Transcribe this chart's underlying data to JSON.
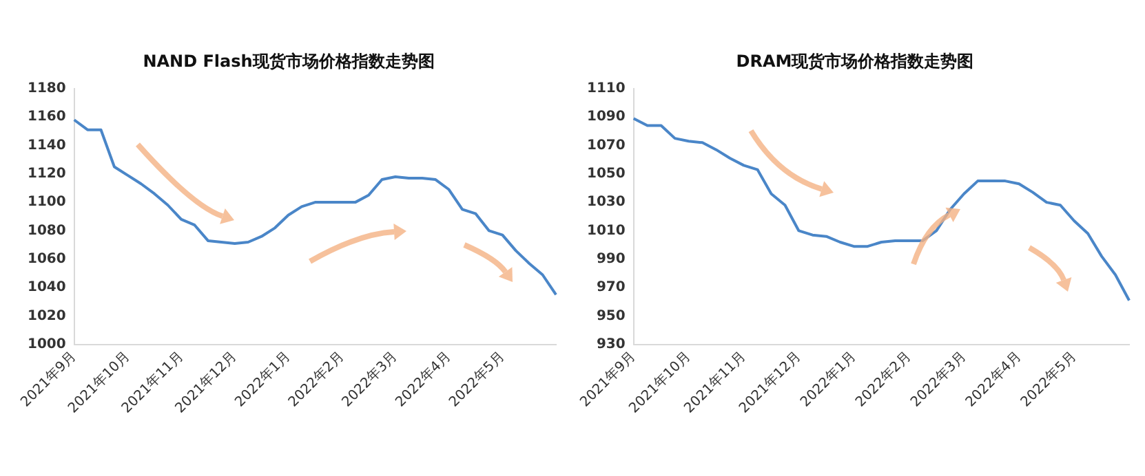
{
  "chart_data": [
    {
      "type": "line",
      "title": "NAND Flash现货市场价格指数走势图",
      "categories": [
        "2021年9月",
        null,
        null,
        null,
        "2021年10月",
        null,
        null,
        null,
        "2021年11月",
        null,
        null,
        null,
        "2021年12月",
        null,
        null,
        null,
        "2022年1月",
        null,
        null,
        null,
        "2022年2月",
        null,
        null,
        null,
        "2022年3月",
        null,
        null,
        null,
        "2022年4月",
        null,
        null,
        null,
        "2022年5月",
        null,
        null,
        null,
        null
      ],
      "series": [
        {
          "color": "#4a86c8",
          "values": [
            1158,
            1151,
            1151,
            1125,
            1119,
            1113,
            1106,
            1098,
            1088,
            1084,
            1073,
            1072,
            1071,
            1072,
            1076,
            1082,
            1091,
            1097,
            1100,
            1100,
            1100,
            1100,
            1105,
            1116,
            1118,
            1117,
            1117,
            1116,
            1109,
            1095,
            1092,
            1080,
            1077,
            1066,
            1057,
            1049,
            1035
          ]
        }
      ],
      "ylim": [
        1000,
        1180
      ],
      "yticks": [
        1000,
        1020,
        1040,
        1060,
        1080,
        1100,
        1120,
        1140,
        1160,
        1180
      ],
      "grid": false,
      "legend": false,
      "marker": "none"
    },
    {
      "type": "line",
      "title": "DRAM现货市场价格指数走势图",
      "categories": [
        "2021年9月",
        null,
        null,
        null,
        "2021年10月",
        null,
        null,
        null,
        "2021年11月",
        null,
        null,
        null,
        "2021年12月",
        null,
        null,
        null,
        "2022年1月",
        null,
        null,
        null,
        "2022年2月",
        null,
        null,
        null,
        "2022年3月",
        null,
        null,
        null,
        "2022年4月",
        null,
        null,
        null,
        "2022年5月",
        null,
        null,
        null,
        null
      ],
      "series": [
        {
          "color": "#4a86c8",
          "values": [
            1089,
            1084,
            1084,
            1075,
            1073,
            1072,
            1067,
            1061,
            1056,
            1053,
            1036,
            1028,
            1010,
            1007,
            1006,
            1002,
            999,
            999,
            1002,
            1003,
            1003,
            1003,
            1010,
            1025,
            1036,
            1045,
            1045,
            1045,
            1043,
            1037,
            1030,
            1028,
            1017,
            1008,
            992,
            979,
            961
          ]
        }
      ],
      "ylim": [
        930,
        1110
      ],
      "yticks": [
        930,
        950,
        970,
        990,
        1010,
        1030,
        1050,
        1070,
        1090,
        1110
      ],
      "grid": false,
      "legend": false,
      "marker": "none"
    }
  ]
}
